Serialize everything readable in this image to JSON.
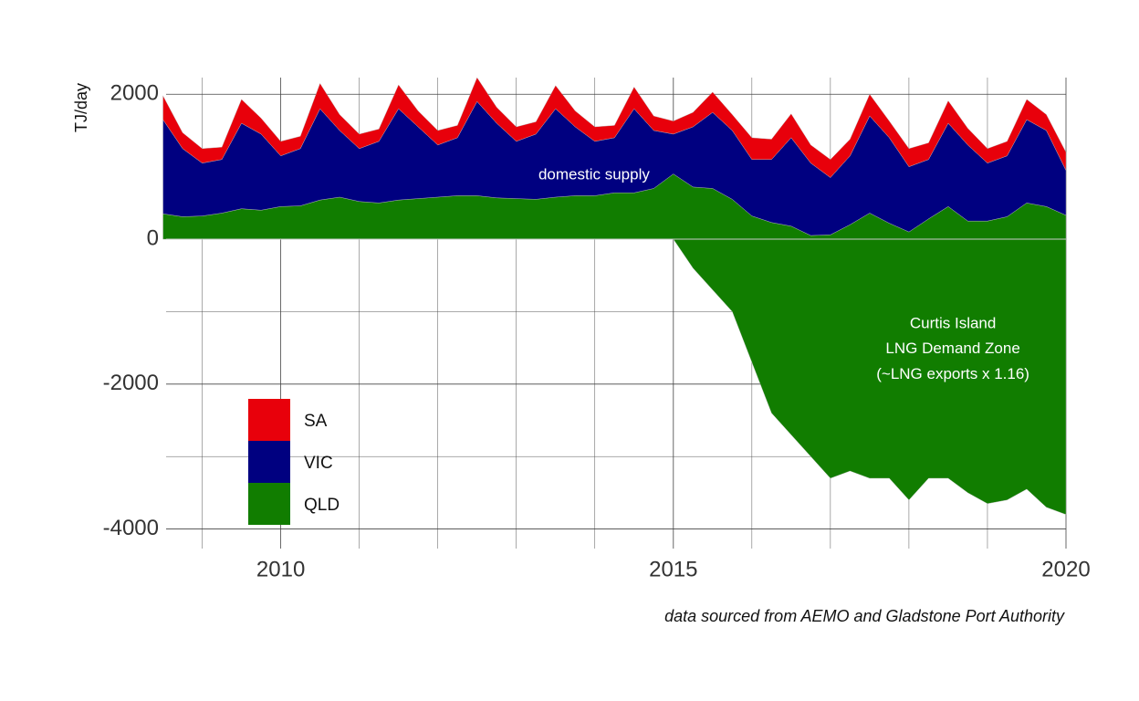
{
  "chart_data": {
    "type": "stacked_area",
    "y_label": "TJ/day",
    "caption": "data sourced from AEMO and Gladstone Port Authority",
    "annotations": [
      {
        "text": "domestic supply",
        "x": 2013.99,
        "y": 880
      },
      {
        "text": "Curtis Island",
        "x": 2018.56,
        "y": -1170
      },
      {
        "text": "LNG Demand Zone",
        "x": 2018.56,
        "y": -1520
      },
      {
        "text": "(~LNG exports x 1.16)",
        "x": 2018.56,
        "y": -1870
      }
    ],
    "x": [
      2008.5,
      2008.75,
      2009,
      2009.25,
      2009.5,
      2009.75,
      2010,
      2010.25,
      2010.5,
      2010.75,
      2011,
      2011.25,
      2011.5,
      2011.75,
      2012,
      2012.25,
      2012.5,
      2012.75,
      2013,
      2013.25,
      2013.5,
      2013.75,
      2014,
      2014.25,
      2014.5,
      2014.75,
      2015,
      2015.25,
      2015.5,
      2015.75,
      2016,
      2016.25,
      2016.5,
      2016.75,
      2017,
      2017.25,
      2017.5,
      2017.75,
      2018,
      2018.25,
      2018.5,
      2018.75,
      2019,
      2019.25,
      2019.5,
      2019.75,
      2020
    ],
    "series": [
      {
        "name": "SA",
        "color": "#e8000b",
        "values": [
          330,
          220,
          200,
          170,
          330,
          220,
          200,
          170,
          350,
          220,
          200,
          170,
          330,
          220,
          200,
          170,
          330,
          220,
          200,
          170,
          320,
          220,
          200,
          170,
          300,
          200,
          180,
          200,
          280,
          220,
          300,
          280,
          330,
          250,
          250,
          230,
          300,
          230,
          250,
          230,
          310,
          230,
          200,
          200,
          280,
          220,
          250
        ]
      },
      {
        "name": "VIC",
        "color": "#000080",
        "values": [
          1300,
          940,
          730,
          740,
          1180,
          1050,
          700,
          790,
          1260,
          920,
          730,
          850,
          1260,
          990,
          720,
          800,
          1300,
          1030,
          790,
          900,
          1220,
          950,
          750,
          760,
          1160,
          800,
          550,
          830,
          1050,
          950,
          780,
          870,
          1220,
          1000,
          790,
          950,
          1340,
          1180,
          900,
          820,
          1150,
          1050,
          800,
          840,
          1150,
          1050,
          620
        ]
      },
      {
        "name": "QLD",
        "color": "#117d00",
        "values": [
          350,
          310,
          320,
          360,
          420,
          400,
          450,
          460,
          540,
          580,
          520,
          500,
          540,
          560,
          580,
          600,
          600,
          570,
          560,
          550,
          580,
          600,
          600,
          640,
          640,
          700,
          900,
          720,
          700,
          550,
          320,
          230,
          180,
          50,
          60,
          200,
          360,
          220,
          100,
          280,
          450,
          250,
          250,
          310,
          500,
          450,
          330
        ]
      },
      {
        "color": "#117d00",
        "values": [
          0,
          0,
          0,
          0,
          0,
          0,
          0,
          0,
          0,
          0,
          0,
          0,
          0,
          0,
          0,
          0,
          0,
          0,
          0,
          0,
          0,
          0,
          0,
          0,
          0,
          0,
          0,
          -400,
          -700,
          -1000,
          -1700,
          -2400,
          -2700,
          -3000,
          -3300,
          -3200,
          -3300,
          -3300,
          -3600,
          -3300,
          -3300,
          -3500,
          -3650,
          -3600,
          -3450,
          -3700,
          -3800
        ]
      }
    ],
    "xlim": [
      2008.54,
      2020.0
    ],
    "ylim": [
      -4270,
      2230
    ],
    "xticks": [
      2010,
      2015,
      2020
    ],
    "yticks": [
      -4000,
      -2000,
      0,
      2000
    ],
    "xminor": [
      2009,
      2011,
      2012,
      2013,
      2014,
      2016,
      2017,
      2018,
      2019
    ],
    "yminor": [
      -3000,
      -1000,
      1000
    ],
    "grid": true,
    "legend": "bottom-left"
  }
}
